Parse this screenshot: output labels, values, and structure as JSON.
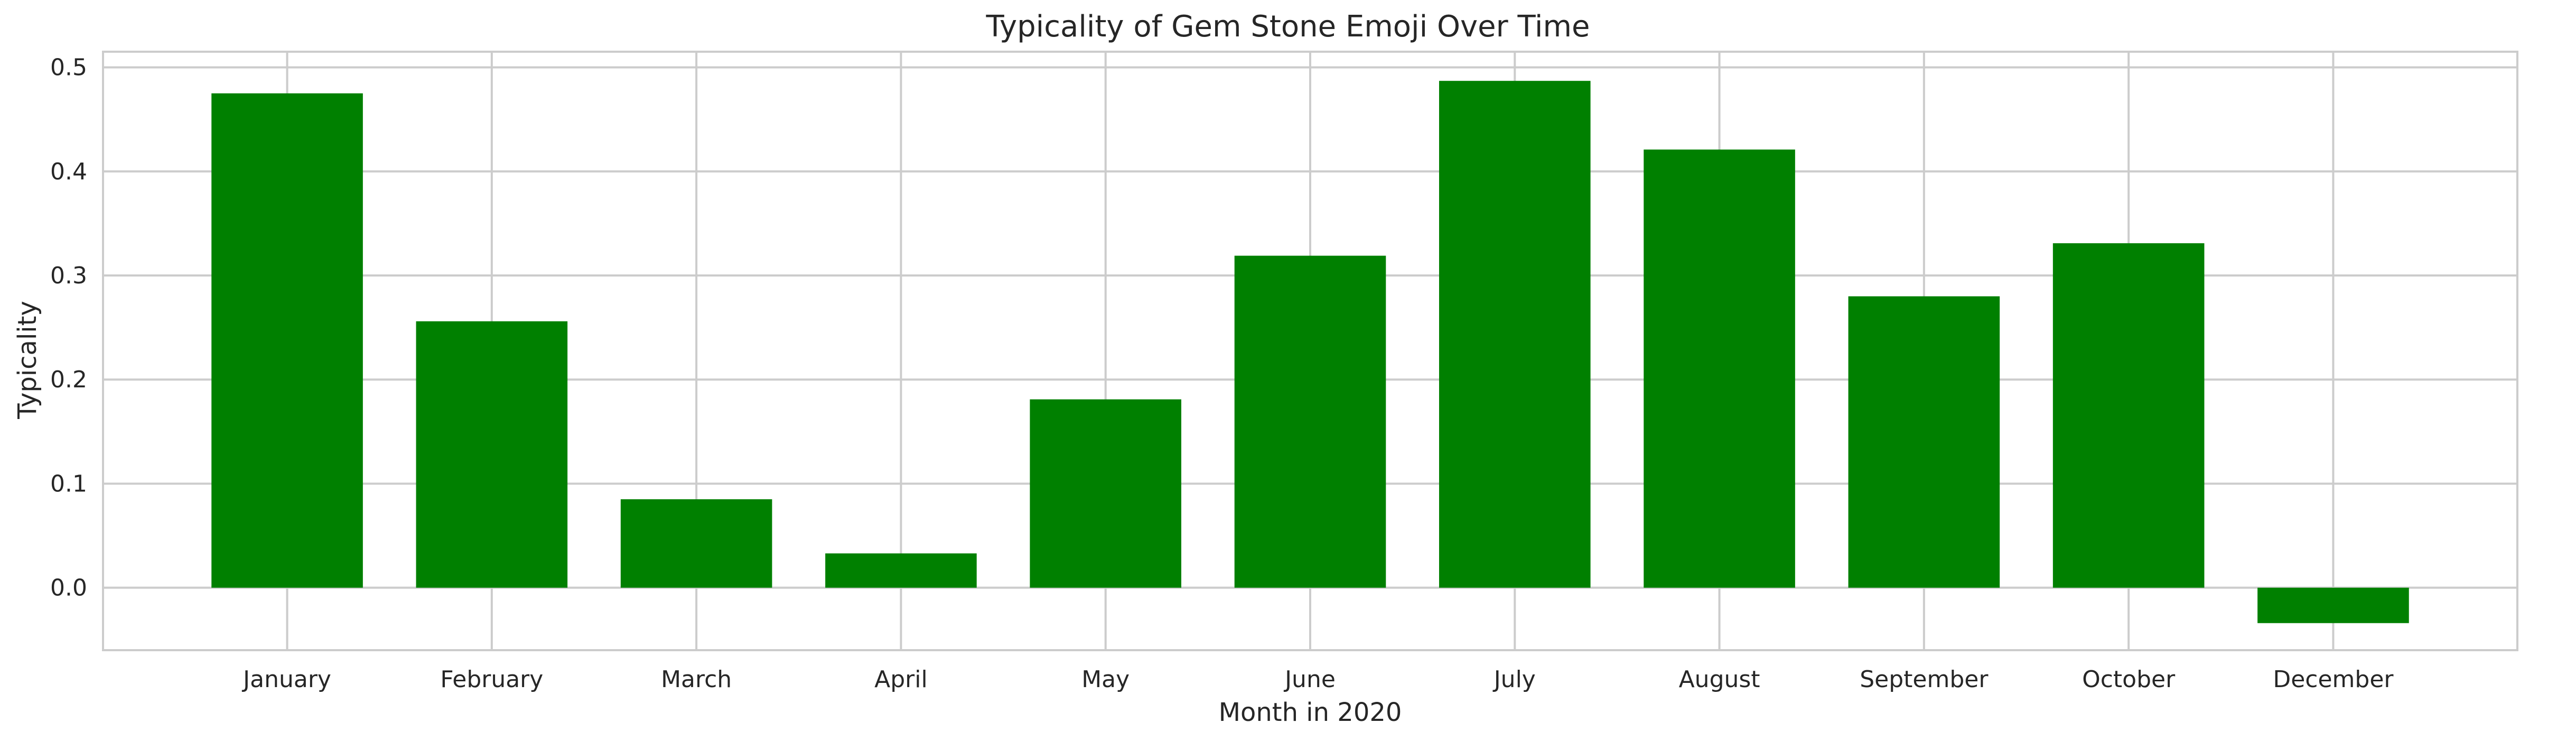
{
  "chart_data": {
    "type": "bar",
    "title": "Typicality of Gem Stone Emoji Over Time",
    "xlabel": "Month in 2020",
    "ylabel": "Typicality",
    "categories": [
      "January",
      "February",
      "March",
      "April",
      "May",
      "June",
      "July",
      "August",
      "September",
      "October",
      "December"
    ],
    "values": [
      0.475,
      0.256,
      0.085,
      0.033,
      0.181,
      0.319,
      0.487,
      0.421,
      0.28,
      0.331,
      -0.034
    ],
    "ylim": [
      -0.06,
      0.515
    ],
    "yticks": [
      "0.0",
      "0.1",
      "0.2",
      "0.3",
      "0.4",
      "0.5"
    ],
    "grid": true,
    "bar_color": "#008000"
  }
}
